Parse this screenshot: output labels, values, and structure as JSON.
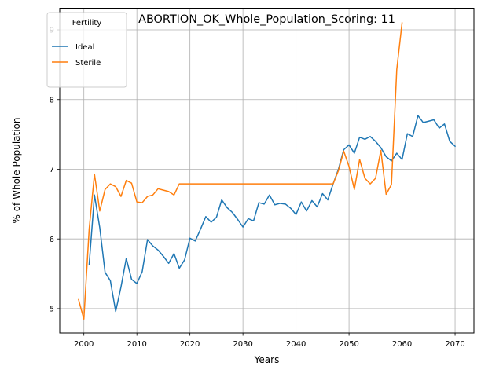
{
  "chart_data": {
    "type": "line",
    "title": "ABORTION_OK_Whole_Population_Scoring: 11",
    "xlabel": "Years",
    "ylabel": "% of Whole Population",
    "xlim": [
      1995.45,
      2073.55
    ],
    "ylim": [
      4.65,
      9.31
    ],
    "xticks": [
      2000,
      2010,
      2020,
      2030,
      2040,
      2050,
      2060,
      2070
    ],
    "yticks": [
      5,
      6,
      7,
      8,
      9
    ],
    "grid": true,
    "legend": {
      "title": "Fertility",
      "placement": "top-left"
    },
    "series": [
      {
        "name": "Ideal",
        "color": "#1f77b4",
        "x": [
          2001,
          2002,
          2003,
          2004,
          2005,
          2006,
          2007,
          2008,
          2009,
          2010,
          2011,
          2012,
          2013,
          2014,
          2015,
          2016,
          2017,
          2018,
          2019,
          2020,
          2021,
          2022,
          2023,
          2024,
          2025,
          2026,
          2027,
          2028,
          2029,
          2030,
          2031,
          2032,
          2033,
          2034,
          2035,
          2036,
          2037,
          2038,
          2039,
          2040,
          2041,
          2042,
          2043,
          2044,
          2045,
          2046,
          2047,
          2048,
          2049,
          2050,
          2051,
          2052,
          2053,
          2054,
          2055,
          2056,
          2057,
          2058,
          2059,
          2060,
          2061,
          2062,
          2063,
          2064,
          2065,
          2066,
          2067,
          2068,
          2069,
          2070
        ],
        "y": [
          5.63,
          6.63,
          6.16,
          5.52,
          5.4,
          4.96,
          5.31,
          5.72,
          5.42,
          5.36,
          5.53,
          5.99,
          5.9,
          5.84,
          5.75,
          5.65,
          5.79,
          5.58,
          5.7,
          6.01,
          5.97,
          6.14,
          6.32,
          6.24,
          6.31,
          6.56,
          6.45,
          6.38,
          6.28,
          6.17,
          6.29,
          6.26,
          6.52,
          6.5,
          6.63,
          6.49,
          6.51,
          6.5,
          6.44,
          6.35,
          6.53,
          6.4,
          6.55,
          6.46,
          6.65,
          6.56,
          6.79,
          7.0,
          7.28,
          7.35,
          7.23,
          7.46,
          7.43,
          7.47,
          7.4,
          7.31,
          7.18,
          7.12,
          7.23,
          7.14,
          7.51,
          7.47,
          7.77,
          7.67,
          7.69,
          7.71,
          7.59,
          7.65,
          7.4,
          7.33
        ]
      },
      {
        "name": "Sterile",
        "color": "#ff7f0e",
        "x": [
          1999,
          2000,
          2001,
          2002,
          2003,
          2004,
          2005,
          2006,
          2007,
          2008,
          2009,
          2010,
          2011,
          2012,
          2013,
          2014,
          2015,
          2016,
          2017,
          2018,
          2019,
          2020,
          2021,
          2022,
          2023,
          2024,
          2025,
          2026,
          2027,
          2028,
          2029,
          2030,
          2031,
          2032,
          2033,
          2034,
          2035,
          2036,
          2037,
          2038,
          2039,
          2040,
          2041,
          2042,
          2043,
          2044,
          2045,
          2046,
          2047,
          2048,
          2049,
          2050,
          2051,
          2052,
          2053,
          2054,
          2055,
          2056,
          2057,
          2058,
          2059,
          2060
        ],
        "y": [
          5.13,
          4.85,
          6.14,
          6.93,
          6.4,
          6.71,
          6.79,
          6.75,
          6.61,
          6.84,
          6.8,
          6.53,
          6.52,
          6.61,
          6.63,
          6.72,
          6.7,
          6.68,
          6.63,
          6.79,
          6.79,
          6.79,
          6.79,
          6.79,
          6.79,
          6.79,
          6.79,
          6.79,
          6.79,
          6.79,
          6.79,
          6.79,
          6.79,
          6.79,
          6.79,
          6.79,
          6.79,
          6.79,
          6.79,
          6.79,
          6.79,
          6.79,
          6.79,
          6.79,
          6.79,
          6.79,
          6.79,
          6.79,
          6.79,
          6.98,
          7.26,
          7.04,
          6.71,
          7.14,
          6.87,
          6.79,
          6.87,
          7.27,
          6.64,
          6.78,
          8.43,
          9.1
        ]
      }
    ]
  }
}
